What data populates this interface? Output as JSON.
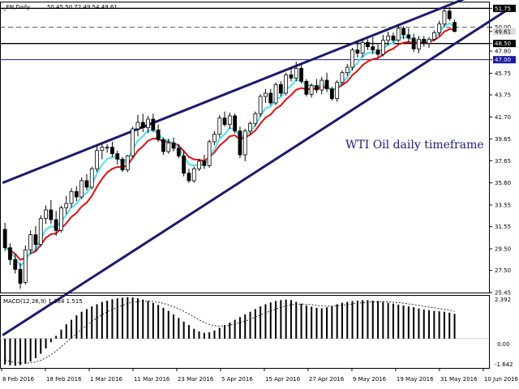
{
  "header": {
    "symbol": "_EN,Daily",
    "ohlc": "50.45 50.72 49.54 49.61"
  },
  "annotation": "WTI Oil daily timeframe",
  "macd": {
    "label": "MACD(12,26,9) 1.384 1.515",
    "max_label": "2.392",
    "zero_label": "0.00",
    "min_label": "-1.642"
  },
  "colors": {
    "bull": "#ffffff",
    "bear": "#000000",
    "ema_fast": "#4ee0ee",
    "ema_slow": "#e01010",
    "channel": "#1a1a6e",
    "hline_blue": "#1a1a9e",
    "annotation": "#1a1a80"
  },
  "chart_data": [
    {
      "type": "candlestick",
      "title": "_EN,Daily",
      "ylim": [
        25.45,
        52.3
      ],
      "price_axis_ticks": [
        "51.75",
        "50.00",
        "49.61",
        "48.50",
        "47.80",
        "47.00",
        "45.75",
        "43.75",
        "41.70",
        "39.65",
        "37.65",
        "35.60",
        "33.55",
        "31.55",
        "29.50",
        "27.50",
        "25.45"
      ],
      "date_labels": [
        "8 Feb 2016",
        "18 Feb 2016",
        "1 Mar 2016",
        "11 Mar 2016",
        "23 Mar 2016",
        "5 Apr 2016",
        "15 Apr 2016",
        "27 Apr 2016",
        "9 May 2016",
        "19 May 2016",
        "31 May 2016",
        "10 Jun 2016"
      ],
      "horizontal_levels": [
        51.75,
        50.0,
        48.5,
        47.0
      ],
      "candles": [
        [
          31.3,
          31.9,
          29.3,
          29.6
        ],
        [
          29.6,
          30.0,
          28.0,
          28.5
        ],
        [
          28.5,
          29.0,
          27.2,
          27.6
        ],
        [
          27.6,
          28.2,
          25.8,
          26.3
        ],
        [
          26.4,
          29.8,
          26.2,
          29.4
        ],
        [
          29.4,
          31.2,
          29.0,
          30.8
        ],
        [
          30.8,
          31.6,
          29.3,
          29.9
        ],
        [
          29.9,
          32.6,
          29.7,
          32.3
        ],
        [
          32.3,
          33.5,
          31.8,
          33.1
        ],
        [
          33.1,
          34.0,
          31.8,
          32.2
        ],
        [
          32.2,
          33.0,
          30.7,
          31.2
        ],
        [
          31.2,
          33.5,
          31.0,
          33.3
        ],
        [
          33.3,
          34.4,
          32.7,
          33.7
        ],
        [
          33.7,
          35.1,
          33.3,
          34.8
        ],
        [
          34.8,
          35.3,
          33.9,
          34.3
        ],
        [
          34.3,
          36.1,
          34.1,
          35.8
        ],
        [
          35.8,
          36.4,
          34.9,
          35.2
        ],
        [
          35.2,
          37.1,
          35.0,
          36.9
        ],
        [
          36.9,
          39.0,
          36.6,
          38.6
        ],
        [
          38.6,
          39.2,
          37.8,
          38.9
        ],
        [
          38.9,
          39.2,
          38.4,
          38.9
        ],
        [
          38.9,
          39.4,
          38.0,
          38.3
        ],
        [
          38.3,
          38.6,
          37.3,
          37.8
        ],
        [
          37.8,
          38.0,
          36.6,
          36.8
        ],
        [
          36.8,
          38.2,
          36.6,
          38.1
        ],
        [
          38.1,
          40.8,
          37.9,
          40.6
        ],
        [
          40.6,
          41.9,
          39.9,
          41.2
        ],
        [
          41.2,
          42.0,
          40.3,
          40.7
        ],
        [
          40.7,
          41.8,
          40.2,
          41.5
        ],
        [
          41.5,
          42.0,
          40.3,
          40.5
        ],
        [
          40.5,
          41.0,
          39.4,
          39.6
        ],
        [
          39.6,
          39.8,
          38.2,
          38.5
        ],
        [
          38.5,
          39.7,
          38.3,
          39.3
        ],
        [
          39.3,
          39.8,
          38.5,
          38.8
        ],
        [
          38.8,
          39.2,
          37.9,
          38.1
        ],
        [
          38.1,
          38.6,
          36.2,
          36.5
        ],
        [
          36.5,
          36.9,
          35.6,
          35.8
        ],
        [
          35.8,
          37.1,
          35.6,
          36.9
        ],
        [
          36.9,
          37.8,
          36.7,
          37.6
        ],
        [
          37.6,
          38.2,
          36.9,
          37.2
        ],
        [
          37.2,
          39.6,
          37.0,
          39.4
        ],
        [
          39.4,
          40.4,
          39.1,
          40.1
        ],
        [
          40.1,
          41.9,
          39.8,
          41.6
        ],
        [
          41.6,
          42.2,
          40.8,
          41.0
        ],
        [
          41.0,
          42.1,
          40.6,
          41.8
        ],
        [
          41.8,
          42.0,
          40.2,
          40.4
        ],
        [
          40.4,
          40.8,
          37.9,
          38.2
        ],
        [
          38.2,
          40.6,
          37.6,
          40.4
        ],
        [
          40.4,
          41.3,
          40.1,
          41.1
        ],
        [
          41.1,
          42.2,
          40.8,
          42.0
        ],
        [
          42.0,
          43.8,
          41.7,
          43.6
        ],
        [
          43.6,
          44.3,
          43.0,
          43.9
        ],
        [
          43.9,
          44.3,
          42.8,
          43.0
        ],
        [
          43.0,
          44.9,
          42.8,
          44.7
        ],
        [
          44.7,
          45.0,
          43.6,
          43.9
        ],
        [
          43.9,
          45.8,
          43.7,
          45.6
        ],
        [
          45.6,
          46.3,
          45.0,
          45.3
        ],
        [
          45.3,
          46.8,
          45.0,
          46.2
        ],
        [
          46.2,
          46.5,
          44.8,
          45.0
        ],
        [
          45.0,
          45.2,
          43.6,
          43.8
        ],
        [
          43.8,
          44.8,
          43.5,
          44.6
        ],
        [
          44.6,
          45.2,
          43.9,
          44.2
        ],
        [
          44.2,
          45.4,
          43.8,
          45.1
        ],
        [
          45.1,
          45.8,
          44.0,
          44.3
        ],
        [
          44.3,
          44.5,
          43.2,
          43.4
        ],
        [
          43.4,
          45.1,
          43.1,
          44.9
        ],
        [
          44.9,
          46.0,
          44.6,
          45.8
        ],
        [
          45.8,
          46.6,
          45.5,
          46.3
        ],
        [
          46.3,
          48.1,
          46.0,
          47.9
        ],
        [
          47.9,
          48.7,
          47.2,
          47.6
        ],
        [
          47.6,
          49.0,
          47.2,
          48.6
        ],
        [
          48.6,
          48.9,
          47.9,
          48.2
        ],
        [
          48.2,
          49.1,
          47.5,
          47.9
        ],
        [
          47.9,
          48.4,
          47.2,
          47.5
        ],
        [
          47.5,
          49.3,
          47.3,
          48.8
        ],
        [
          48.8,
          49.6,
          48.3,
          49.2
        ],
        [
          49.2,
          49.5,
          48.6,
          48.8
        ],
        [
          48.8,
          50.3,
          48.6,
          49.9
        ],
        [
          49.9,
          50.1,
          48.9,
          49.3
        ],
        [
          49.3,
          49.9,
          48.6,
          49.0
        ],
        [
          49.0,
          49.4,
          47.7,
          48.0
        ],
        [
          48.0,
          49.2,
          47.6,
          48.9
        ],
        [
          48.9,
          49.2,
          48.2,
          48.5
        ],
        [
          48.5,
          49.1,
          48.1,
          48.9
        ],
        [
          48.9,
          49.7,
          48.7,
          49.5
        ],
        [
          49.5,
          50.6,
          49.2,
          50.3
        ],
        [
          50.3,
          51.7,
          50.0,
          51.5
        ],
        [
          51.5,
          51.9,
          50.6,
          50.8
        ],
        [
          50.45,
          50.72,
          49.54,
          49.61
        ]
      ]
    },
    {
      "type": "bar",
      "title": "MACD(12,26,9) 1.384 1.515",
      "ylim": [
        -1.642,
        2.392
      ],
      "series": [
        {
          "name": "MACD",
          "values": [
            -1.45,
            -1.5,
            -1.52,
            -1.48,
            -1.4,
            -1.28,
            -1.1,
            -0.85,
            -0.55,
            -0.2,
            0.15,
            0.5,
            0.8,
            1.05,
            1.3,
            1.5,
            1.65,
            1.8,
            1.92,
            2.05,
            2.12,
            2.2,
            2.25,
            2.28,
            2.32,
            2.3,
            2.25,
            2.18,
            2.1,
            2.0,
            1.88,
            1.72,
            1.55,
            1.35,
            1.15,
            0.95,
            0.75,
            0.55,
            0.4,
            0.32,
            0.35,
            0.45,
            0.6,
            0.75,
            0.9,
            1.05,
            1.2,
            1.35,
            1.5,
            1.65,
            1.8,
            1.92,
            2.02,
            2.1,
            2.15,
            2.18,
            2.15,
            2.05,
            1.95,
            1.85,
            1.78,
            1.72,
            1.7,
            1.75,
            1.82,
            1.92,
            2.0,
            2.05,
            2.1,
            2.12,
            2.15,
            2.15,
            2.12,
            2.1,
            2.05,
            2.0,
            1.95,
            1.9,
            1.85,
            1.8,
            1.75,
            1.68,
            1.62,
            1.58,
            1.55,
            1.52,
            1.5,
            1.45,
            1.38
          ]
        },
        {
          "name": "Signal",
          "values": [
            -1.2,
            -1.28,
            -1.34,
            -1.37,
            -1.38,
            -1.36,
            -1.31,
            -1.22,
            -1.09,
            -0.91,
            -0.7,
            -0.46,
            -0.21,
            0.04,
            0.29,
            0.53,
            0.75,
            0.96,
            1.15,
            1.33,
            1.49,
            1.63,
            1.76,
            1.86,
            1.96,
            2.03,
            2.07,
            2.1,
            2.1,
            2.08,
            2.04,
            1.97,
            1.89,
            1.78,
            1.66,
            1.52,
            1.37,
            1.21,
            1.05,
            0.9,
            0.79,
            0.72,
            0.7,
            0.71,
            0.75,
            0.81,
            0.89,
            0.98,
            1.08,
            1.2,
            1.31,
            1.43,
            1.55,
            1.65,
            1.75,
            1.83,
            1.89,
            1.92,
            1.93,
            1.92,
            1.89,
            1.86,
            1.82,
            1.81,
            1.81,
            1.83,
            1.86,
            1.9,
            1.94,
            1.97,
            2.0,
            2.03,
            2.05,
            2.06,
            2.06,
            2.05,
            2.03,
            2.01,
            1.98,
            1.94,
            1.9,
            1.86,
            1.81,
            1.76,
            1.72,
            1.68,
            1.64,
            1.6,
            1.515
          ]
        }
      ]
    }
  ]
}
